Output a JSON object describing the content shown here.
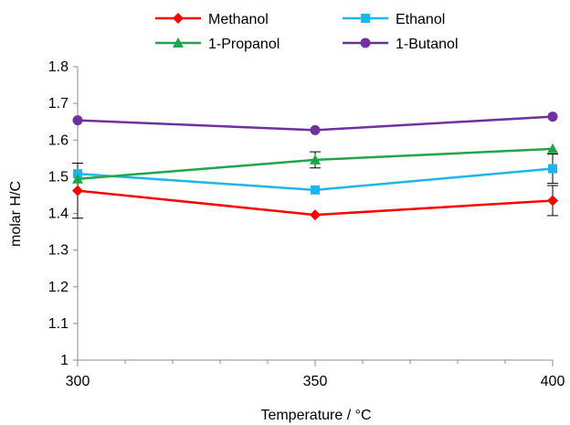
{
  "chart_data": {
    "type": "line",
    "x": [
      300,
      350,
      400
    ],
    "xlim": [
      300,
      400
    ],
    "x_ticks": [
      "300",
      "350",
      "400"
    ],
    "ylim": [
      1,
      1.8
    ],
    "y_ticks": [
      "1",
      "1.1",
      "1.2",
      "1.3",
      "1.4",
      "1.5",
      "1.6",
      "1.7",
      "1.8"
    ],
    "xlabel": "Temperature / °C",
    "ylabel": "molar H/C",
    "grid": false,
    "legend_position": "top",
    "series": [
      {
        "name": "Methanol",
        "color": "#ff0000",
        "marker": "diamond",
        "values": [
          1.462,
          1.396,
          1.435
        ],
        "errors": [
          0.075,
          0,
          0.041
        ]
      },
      {
        "name": "Ethanol",
        "color": "#1eb4ec",
        "marker": "square",
        "values": [
          1.508,
          1.464,
          1.522
        ],
        "errors": [
          0,
          0,
          0.04
        ]
      },
      {
        "name": "1-Propanol",
        "color": "#1fa64a",
        "marker": "triangle",
        "values": [
          1.494,
          1.546,
          1.576
        ],
        "errors": [
          0,
          0.022,
          0
        ]
      },
      {
        "name": "1-Butanol",
        "color": "#7030a0",
        "marker": "circle",
        "values": [
          1.654,
          1.627,
          1.664
        ],
        "errors": [
          0,
          0,
          0
        ]
      }
    ]
  }
}
